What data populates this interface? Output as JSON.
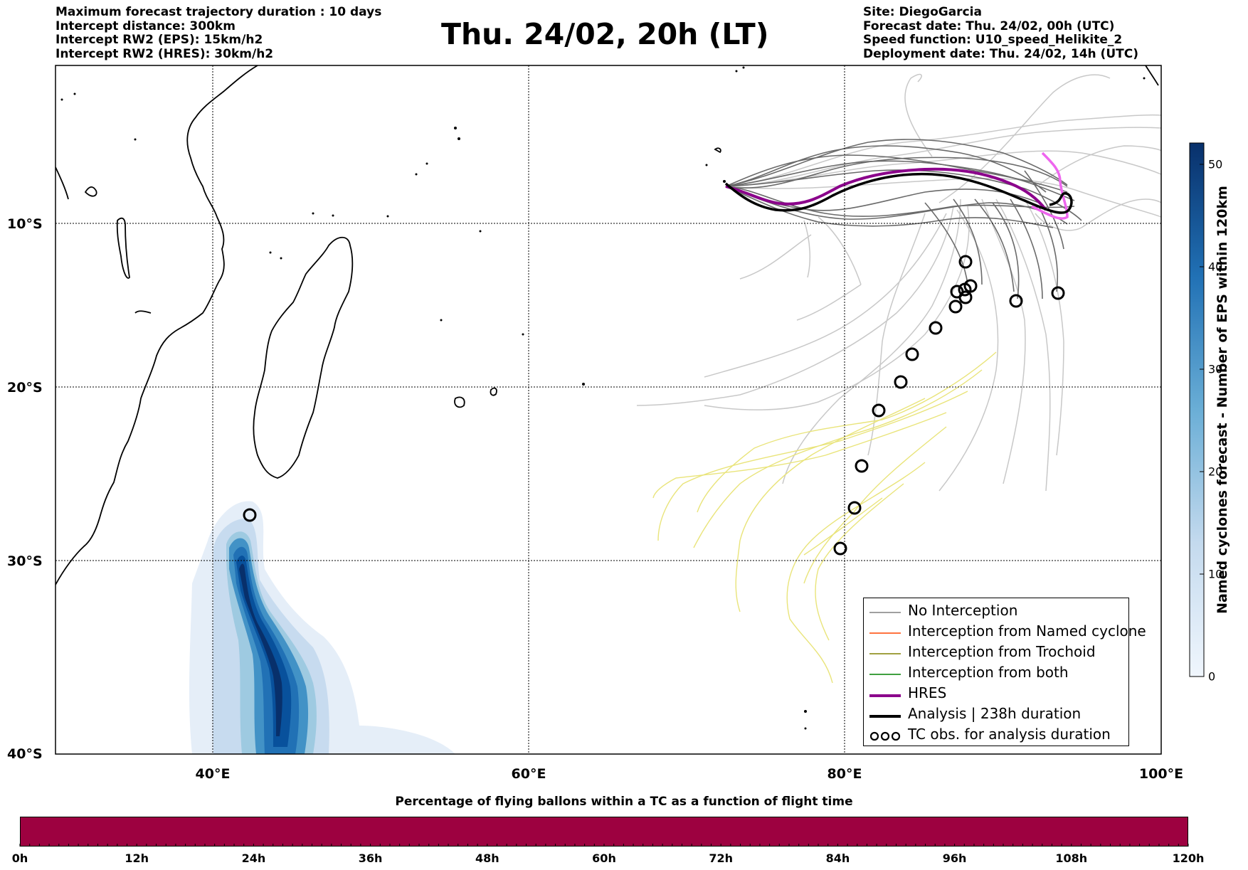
{
  "header_left": [
    "Maximum forecast trajectory duration : 10 days",
    "Intercept distance: 300km",
    "Intercept RW2 (EPS):  15km/h2",
    "Intercept RW2 (HRES): 30km/h2"
  ],
  "title": "Thu. 24/02, 20h (LT)",
  "header_right": [
    "Site: DiegoGarcia",
    "Forecast date: Thu. 24/02, 00h (UTC)",
    "Speed function: U10_speed_Helikite_2",
    "Deployment date: Thu. 24/02, 14h (UTC)"
  ],
  "map": {
    "lon_ticks": [
      "40°E",
      "60°E",
      "80°E",
      "100°E"
    ],
    "lat_ticks": [
      "10°S",
      "20°S",
      "30°S",
      "40°S"
    ],
    "lon_range": [
      30,
      100
    ],
    "lat_range": [
      -1,
      -40
    ]
  },
  "legend": {
    "items": [
      {
        "label": "No Interception",
        "color": "#808080"
      },
      {
        "label": "Interception from Named cyclone",
        "color": "#ff4500"
      },
      {
        "label": "Interception from Trochoid",
        "color": "#808000"
      },
      {
        "label": "Interception from both",
        "color": "#008000"
      },
      {
        "label": "HRES",
        "color": "#8b008b"
      },
      {
        "label": "Analysis | 238h duration",
        "color": "#000000"
      },
      {
        "label": "TC obs. for analysis duration",
        "color": "#000000"
      }
    ]
  },
  "colorbar": {
    "title": "Named cyclones forecast - Number of EPS within 120km",
    "ticks": [
      "0",
      "10",
      "20",
      "30",
      "40",
      "50"
    ],
    "range": [
      0,
      52
    ],
    "cmap": [
      "#eaf2fb",
      "#08306b"
    ]
  },
  "bottom": {
    "title": "Percentage of flying ballons within a TC as a function of flight time",
    "ticks": [
      "0h",
      "12h",
      "24h",
      "36h",
      "48h",
      "60h",
      "72h",
      "84h",
      "96h",
      "108h",
      "120h"
    ],
    "bar_color": "#9d0140"
  }
}
